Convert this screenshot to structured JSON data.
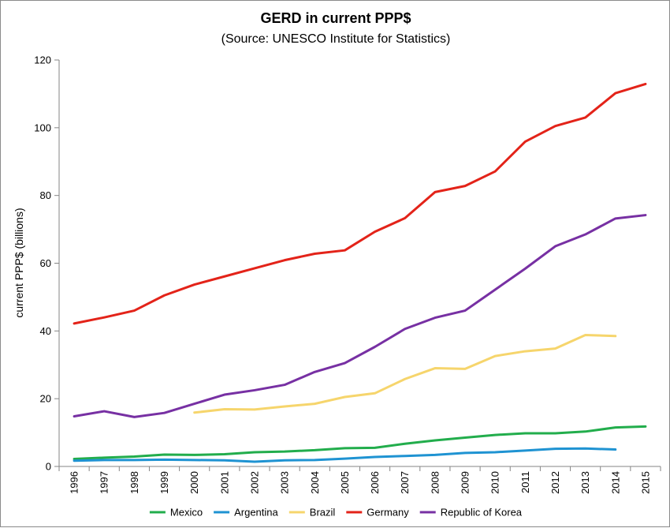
{
  "chart_data": {
    "type": "line",
    "title": "GERD in current PPP$",
    "subtitle": "(Source: UNESCO Institute for Statistics)",
    "ylabel": "current PPP$ (billions)",
    "xlabel": "",
    "ylim": [
      0,
      120
    ],
    "yticks": [
      0,
      20,
      40,
      60,
      80,
      100,
      120
    ],
    "categories": [
      "1996",
      "1997",
      "1998",
      "1999",
      "2000",
      "2001",
      "2002",
      "2003",
      "2004",
      "2005",
      "2006",
      "2007",
      "2008",
      "2009",
      "2010",
      "2011",
      "2012",
      "2013",
      "2014",
      "2015"
    ],
    "grid": false,
    "legend_position": "bottom",
    "series": [
      {
        "name": "Mexico",
        "color": "#22ad4c",
        "values": [
          2.2,
          2.6,
          2.9,
          3.5,
          3.4,
          3.6,
          4.2,
          4.4,
          4.8,
          5.4,
          5.5,
          6.7,
          7.7,
          8.5,
          9.3,
          9.8,
          9.8,
          10.3,
          11.5,
          11.8
        ]
      },
      {
        "name": "Argentina",
        "color": "#1f93d2",
        "values": [
          1.7,
          1.9,
          1.9,
          2.0,
          1.9,
          1.8,
          1.4,
          1.8,
          1.9,
          2.3,
          2.8,
          3.1,
          3.4,
          4.0,
          4.2,
          4.7,
          5.2,
          5.3,
          5.0,
          null
        ]
      },
      {
        "name": "Brazil",
        "color": "#f6d56c",
        "values": [
          null,
          null,
          null,
          null,
          15.9,
          16.9,
          16.8,
          17.7,
          18.5,
          20.5,
          21.6,
          25.8,
          29.0,
          28.8,
          32.6,
          34.0,
          34.8,
          38.8,
          38.5,
          null
        ]
      },
      {
        "name": "Germany",
        "color": "#e32319",
        "values": [
          42.2,
          44.0,
          46.0,
          50.5,
          53.7,
          56.1,
          58.5,
          60.9,
          62.8,
          63.8,
          69.3,
          73.3,
          81.0,
          82.8,
          87.1,
          95.9,
          100.5,
          103.0,
          110.2,
          112.9
        ]
      },
      {
        "name": "Republic of Korea",
        "color": "#7730a3",
        "values": [
          14.8,
          16.3,
          14.6,
          15.8,
          18.5,
          21.2,
          22.5,
          24.1,
          27.9,
          30.5,
          35.3,
          40.6,
          43.9,
          46.0,
          52.2,
          58.4,
          65.0,
          68.5,
          73.2,
          74.2
        ]
      }
    ]
  }
}
